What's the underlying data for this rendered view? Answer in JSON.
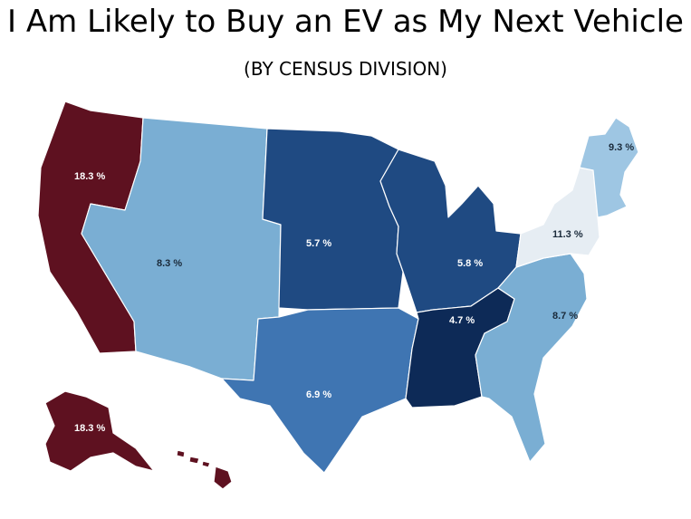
{
  "title": "I Am Likely to Buy an EV as My Next Vehicle",
  "subtitle": "(BY CENSUS DIVISION)",
  "colors": {
    "pacific": "#5e1120",
    "mountain": "#7aaed3",
    "west_north_central": "#1f4a82",
    "east_north_central": "#1f4a82",
    "west_south_central": "#3f75b2",
    "east_south_central": "#0d2a57",
    "south_atlantic": "#7aaed3",
    "middle_atlantic": "#e6edf3",
    "new_england": "#9ec6e3"
  },
  "divisions": [
    {
      "id": "pacific",
      "value": "18.3 %"
    },
    {
      "id": "pacific_alaska",
      "value": "18.3 %"
    },
    {
      "id": "mountain",
      "value": "8.3 %"
    },
    {
      "id": "west_north_central",
      "value": "5.7 %"
    },
    {
      "id": "east_north_central",
      "value": "5.8 %"
    },
    {
      "id": "east_south_central",
      "value": "4.7 %"
    },
    {
      "id": "west_south_central",
      "value": "6.9 %"
    },
    {
      "id": "south_atlantic",
      "value": "8.7 %"
    },
    {
      "id": "middle_atlantic",
      "value": "11.3 %"
    },
    {
      "id": "new_england",
      "value": "9.3 %"
    }
  ]
}
